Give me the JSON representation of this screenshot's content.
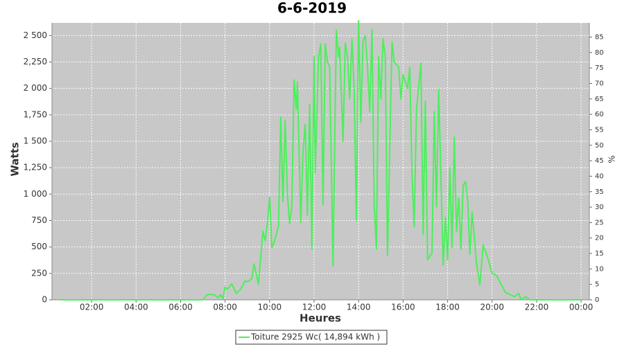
{
  "chart_data": {
    "type": "line",
    "title": "6-6-2019",
    "x_label": "Heures",
    "y_label": "Watts",
    "y2_label": "%",
    "x": [
      0.6,
      7.0,
      7.2,
      7.5,
      7.7,
      7.8,
      7.9,
      8.0,
      8.1,
      8.3,
      8.5,
      8.7,
      8.9,
      9.0,
      9.2,
      9.3,
      9.5,
      9.7,
      9.8,
      9.9,
      10.0,
      10.1,
      10.2,
      10.4,
      10.5,
      10.6,
      10.7,
      10.8,
      10.9,
      11.0,
      11.1,
      11.2,
      11.25,
      11.4,
      11.5,
      11.6,
      11.7,
      11.8,
      11.9,
      12.0,
      12.05,
      12.2,
      12.3,
      12.4,
      12.5,
      12.6,
      12.7,
      12.85,
      13.0,
      13.1,
      13.15,
      13.3,
      13.4,
      13.5,
      13.6,
      13.7,
      13.8,
      13.9,
      14.0,
      14.1,
      14.2,
      14.3,
      14.4,
      14.5,
      14.6,
      14.7,
      14.8,
      14.9,
      15.0,
      15.1,
      15.2,
      15.3,
      15.5,
      15.6,
      15.8,
      15.9,
      16.0,
      16.2,
      16.3,
      16.4,
      16.5,
      16.6,
      16.8,
      16.9,
      17.0,
      17.1,
      17.3,
      17.4,
      17.5,
      17.6,
      17.8,
      17.9,
      18.0,
      18.1,
      18.2,
      18.3,
      18.4,
      18.5,
      18.6,
      18.7,
      18.8,
      18.9,
      19.0,
      19.1,
      19.2,
      19.3,
      19.45,
      19.6,
      19.8,
      20.0,
      20.2,
      20.4,
      20.6,
      20.8,
      21.0,
      21.2,
      21.3,
      21.5,
      21.7,
      24.0
    ],
    "series": [
      {
        "name": "Toiture 2925 Wc( 14,894 kWh )",
        "color": "#4cef5c",
        "values": [
          0,
          0,
          50,
          50,
          20,
          50,
          10,
          120,
          100,
          150,
          60,
          100,
          180,
          170,
          200,
          340,
          150,
          650,
          560,
          720,
          970,
          500,
          540,
          700,
          1730,
          930,
          1700,
          1000,
          720,
          880,
          2080,
          1800,
          2060,
          730,
          1400,
          1660,
          800,
          1850,
          480,
          2300,
          1200,
          2300,
          2420,
          900,
          2420,
          2250,
          2200,
          320,
          2550,
          2300,
          2390,
          1500,
          2430,
          2300,
          1900,
          2470,
          2000,
          750,
          2640,
          1680,
          2450,
          2500,
          2200,
          1780,
          2560,
          900,
          480,
          2300,
          1900,
          2470,
          2300,
          420,
          2440,
          2250,
          2200,
          1900,
          2130,
          2000,
          2200,
          1200,
          690,
          1800,
          2240,
          620,
          1880,
          380,
          440,
          1780,
          880,
          1990,
          330,
          780,
          380,
          1250,
          500,
          1540,
          650,
          960,
          480,
          1080,
          1120,
          950,
          430,
          830,
          600,
          340,
          140,
          520,
          400,
          250,
          230,
          150,
          70,
          50,
          30,
          60,
          0,
          30,
          0,
          0
        ]
      }
    ],
    "xlim": [
      0.22,
      24.37
    ],
    "xticks": [
      {
        "value": 2,
        "label": "02:00"
      },
      {
        "value": 4,
        "label": "04:00"
      },
      {
        "value": 6,
        "label": "06:00"
      },
      {
        "value": 8,
        "label": "08:00"
      },
      {
        "value": 10,
        "label": "10:00"
      },
      {
        "value": 12,
        "label": "12:00"
      },
      {
        "value": 14,
        "label": "14:00"
      },
      {
        "value": 16,
        "label": "16:00"
      },
      {
        "value": 18,
        "label": "18:00"
      },
      {
        "value": 20,
        "label": "20:00"
      },
      {
        "value": 22,
        "label": "22:00"
      },
      {
        "value": 24,
        "label": "00:00"
      }
    ],
    "ylim": [
      0,
      2620
    ],
    "yticks": [
      0,
      250,
      500,
      750,
      {
        "value": 1000,
        "label": "1 000"
      },
      {
        "value": 1250,
        "label": "1,250"
      },
      {
        "value": 1500,
        "label": "1 500"
      },
      {
        "value": 1750,
        "label": "1,750"
      },
      {
        "value": 2000,
        "label": "2 000"
      },
      {
        "value": 2250,
        "label": "2,250"
      },
      {
        "value": 2500,
        "label": "2 500"
      }
    ],
    "y2lim": [
      0,
      89.6
    ],
    "y2ticks": [
      0,
      5,
      10,
      15,
      20,
      25,
      30,
      35,
      40,
      45,
      50,
      55,
      60,
      65,
      70,
      75,
      80,
      85
    ],
    "grid": true
  }
}
